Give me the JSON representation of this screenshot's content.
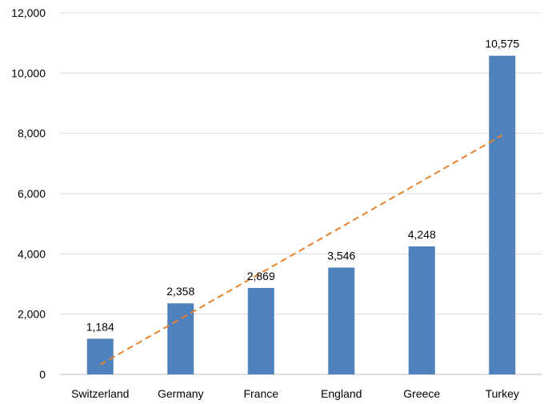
{
  "chart_data": {
    "type": "bar",
    "categories": [
      "Switzerland",
      "Germany",
      "France",
      "England",
      "Greece",
      "Turkey"
    ],
    "values": [
      1184,
      2358,
      2869,
      3546,
      4248,
      10575
    ],
    "data_labels": [
      "1,184",
      "2,358",
      "2,869",
      "3,546",
      "4,248",
      "10,575"
    ],
    "ylim": [
      0,
      12000
    ],
    "yticks": [
      0,
      2000,
      4000,
      6000,
      8000,
      10000,
      12000
    ],
    "ytick_labels": [
      "0",
      "2,000",
      "4,000",
      "6,000",
      "8,000",
      "10,000",
      "12,000"
    ],
    "grid": true,
    "legend": "none",
    "trendline": {
      "type": "linear",
      "style": "dashed"
    },
    "colors": {
      "bar": "#4f81bd",
      "trendline": "#e8832a",
      "grid": "#d9d9d9",
      "axis": "#bfbfbf"
    }
  }
}
